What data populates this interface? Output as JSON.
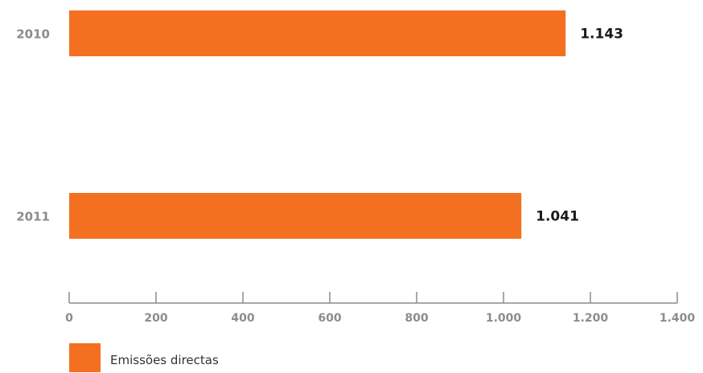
{
  "chart_data": {
    "type": "bar",
    "orientation": "horizontal",
    "categories": [
      "2010",
      "2011"
    ],
    "series": [
      {
        "name": "Emissões directas",
        "values": [
          1143,
          1041
        ],
        "value_labels": [
          "1.143",
          "1.041"
        ],
        "color": "#f37021"
      }
    ],
    "xlim": [
      0,
      1400
    ],
    "ticks": [
      0,
      200,
      400,
      600,
      800,
      1000,
      1200,
      1400
    ],
    "tick_labels": [
      "0",
      "200",
      "400",
      "600",
      "800",
      "1.000",
      "1.200",
      "1.400"
    ],
    "grid": false,
    "legend_position": "bottom-left"
  }
}
